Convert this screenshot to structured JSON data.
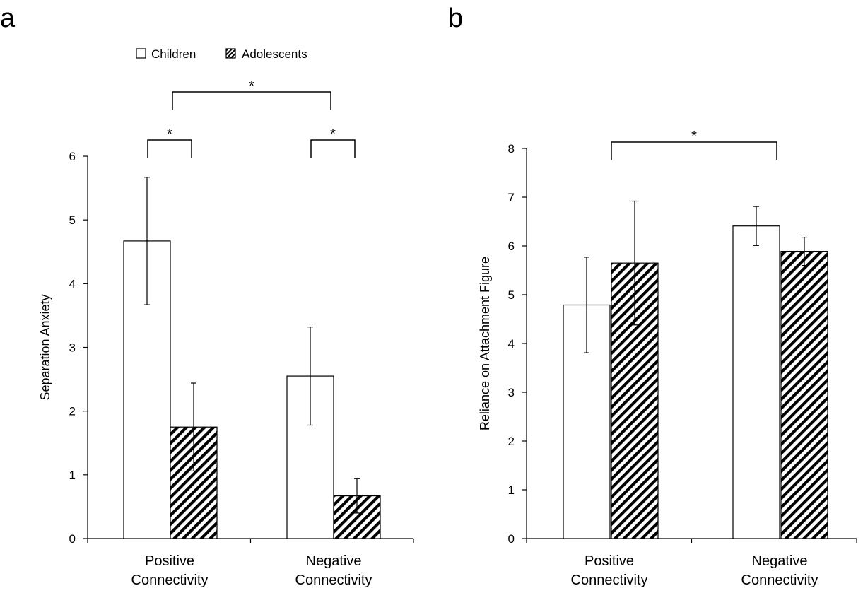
{
  "legend": {
    "items": [
      "Children",
      "Adolescents"
    ],
    "placement": "top"
  },
  "chart_data": [
    {
      "panel_label": "a",
      "type": "bar",
      "categories": [
        "Positive\nConnectivity",
        "Negative\nConnectivity"
      ],
      "series": [
        {
          "name": "Children",
          "values": [
            4.67,
            2.55
          ],
          "errors": [
            1.0,
            0.77
          ],
          "pattern": "none"
        },
        {
          "name": "Adolescents",
          "values": [
            1.75,
            0.67
          ],
          "errors": [
            0.69,
            0.27
          ],
          "pattern": "hatch"
        }
      ],
      "ylabel": "Separation Anxiety",
      "ylim": [
        0,
        6
      ],
      "yticks": [
        0,
        1,
        2,
        3,
        4,
        5,
        6
      ],
      "significance": [
        {
          "type": "within",
          "group": 0,
          "label": "*"
        },
        {
          "type": "within",
          "group": 1,
          "label": "*"
        },
        {
          "type": "between",
          "groups": [
            0,
            1
          ],
          "label": "*"
        }
      ]
    },
    {
      "panel_label": "b",
      "type": "bar",
      "categories": [
        "Positive\nConnectivity",
        "Negative\nConnectivity"
      ],
      "series": [
        {
          "name": "Children",
          "values": [
            4.79,
            6.41
          ],
          "errors": [
            0.98,
            0.4
          ],
          "pattern": "none"
        },
        {
          "name": "Adolescents",
          "values": [
            5.65,
            5.89
          ],
          "errors": [
            1.27,
            0.29
          ],
          "pattern": "hatch"
        }
      ],
      "ylabel": "Reliance on Attachment Figure",
      "ylim": [
        0,
        8
      ],
      "yticks": [
        0,
        1,
        2,
        3,
        4,
        5,
        6,
        7,
        8
      ],
      "significance": [
        {
          "type": "between",
          "groups": [
            0,
            1
          ],
          "label": "*"
        }
      ]
    }
  ]
}
